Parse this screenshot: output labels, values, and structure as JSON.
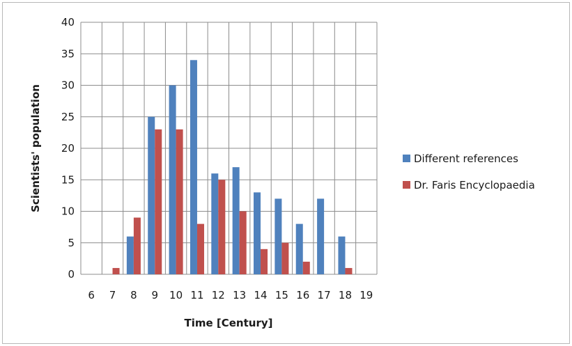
{
  "chart_data": {
    "type": "bar",
    "title": "",
    "xlabel": "Time [Century]",
    "ylabel": "Scientists' population",
    "categories": [
      "6",
      "7",
      "8",
      "9",
      "10",
      "11",
      "12",
      "13",
      "14",
      "15",
      "16",
      "17",
      "18",
      "19"
    ],
    "series": [
      {
        "name": "Different references",
        "color": "#4f81bd",
        "values": [
          0,
          0,
          6,
          25,
          30,
          34,
          16,
          17,
          13,
          12,
          8,
          12,
          6,
          0
        ]
      },
      {
        "name": "Dr. Faris Encyclopaedia",
        "color": "#c0504d",
        "values": [
          0,
          1,
          9,
          23,
          23,
          8,
          15,
          10,
          4,
          5,
          2,
          0,
          1,
          0
        ]
      }
    ],
    "ylim": [
      0,
      40
    ],
    "yticks": [
      0,
      5,
      10,
      15,
      20,
      25,
      30,
      35,
      40
    ],
    "grid": true,
    "legend_position": "right"
  }
}
